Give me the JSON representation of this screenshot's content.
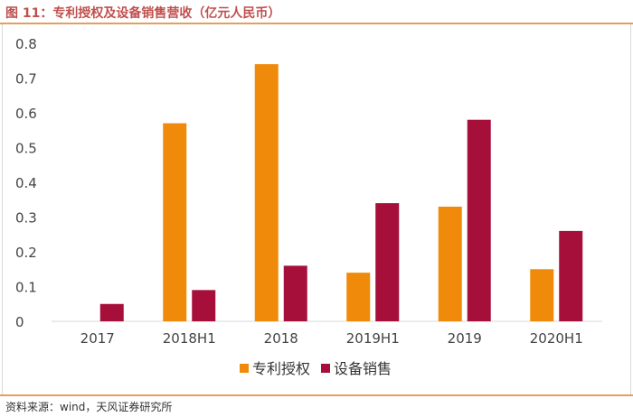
{
  "figure": {
    "title": "图 11：专利授权及设备销售营收（亿元人民币）",
    "source": "资料来源：wind，天风证券研究所"
  },
  "chart_data": {
    "type": "bar",
    "title": "",
    "xlabel": "",
    "ylabel": "",
    "categories": [
      "2017",
      "2018H1",
      "2018",
      "2019H1",
      "2019",
      "2020H1"
    ],
    "series": [
      {
        "name": "专利授权",
        "color": "#f08a0b",
        "values": [
          0,
          0.57,
          0.74,
          0.14,
          0.33,
          0.15
        ]
      },
      {
        "name": "设备销售",
        "color": "#a50f3a",
        "values": [
          0.05,
          0.09,
          0.16,
          0.34,
          0.58,
          0.26
        ]
      }
    ],
    "ylim": [
      0,
      0.8
    ],
    "yticks": [
      "0",
      "0.1",
      "0.2",
      "0.3",
      "0.4",
      "0.5",
      "0.6",
      "0.7",
      "0.8"
    ],
    "grid": false,
    "legend": "bottom"
  }
}
